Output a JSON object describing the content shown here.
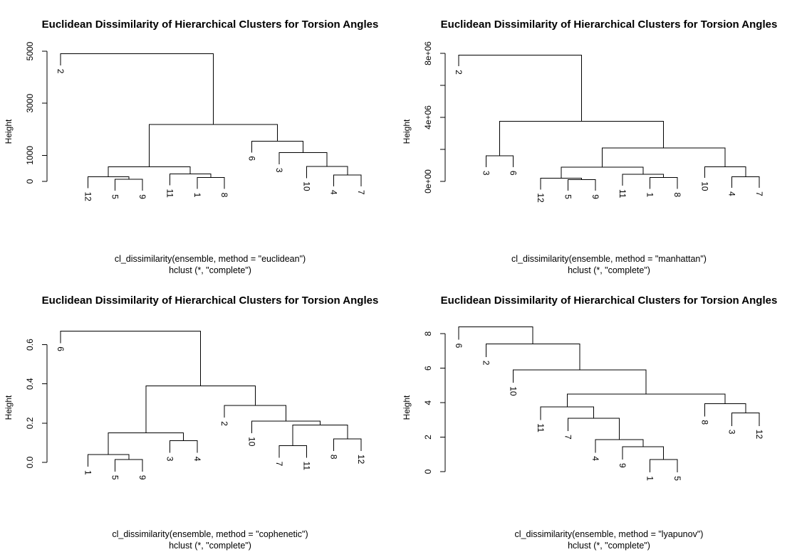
{
  "chart_data": [
    {
      "type": "dendrogram",
      "title": "Euclidean Dissimilarity of Hierarchical Clusters for Torsion Angles",
      "ylabel": "Height",
      "xlabel": "cl_dissimilarity(ensemble, method = \"euclidean\")",
      "sub": "hclust (*, \"complete\")",
      "yticks": [
        0,
        1000,
        3000,
        5000
      ],
      "ytick_labels": [
        "0",
        "1000",
        "3000",
        "5000"
      ],
      "ylim": [
        0,
        5000
      ],
      "leaf_order": [
        "2",
        "12",
        "5",
        "9",
        "11",
        "1",
        "8",
        "6",
        "3",
        "10",
        "4",
        "7"
      ],
      "merges": [
        {
          "a": "5",
          "b": "9",
          "h": 80
        },
        {
          "a": "1",
          "b": "8",
          "h": 150
        },
        {
          "a": "12",
          "b": "m1",
          "h": 180
        },
        {
          "a": "11",
          "b": "m2",
          "h": 290
        },
        {
          "a": "4",
          "b": "7",
          "h": 250
        },
        {
          "a": "10",
          "b": "m5",
          "h": 570
        },
        {
          "a": "3",
          "b": "m6",
          "h": 1100
        },
        {
          "a": "6",
          "b": "m7",
          "h": 1550
        },
        {
          "a": "m3",
          "b": "m4",
          "h": 560
        },
        {
          "a": "m9",
          "b": "m8",
          "h": 2180
        },
        {
          "a": "2",
          "b": "m10",
          "h": 4900
        }
      ]
    },
    {
      "type": "dendrogram",
      "title": "Euclidean Dissimilarity of Hierarchical Clusters for Torsion Angles",
      "ylabel": "Height",
      "xlabel": "cl_dissimilarity(ensemble, method = \"manhattan\")",
      "sub": "hclust (*, \"complete\")",
      "yticks": [
        0,
        4000000,
        8000000
      ],
      "ytick_labels": [
        "0e+00",
        "4e+06",
        "8e+06"
      ],
      "ylim": [
        0,
        8000000
      ],
      "minor_yticks": [
        2000000,
        6000000
      ],
      "leaf_order": [
        "2",
        "3",
        "6",
        "12",
        "5",
        "9",
        "11",
        "1",
        "8",
        "10",
        "4",
        "7"
      ],
      "merges": [
        {
          "a": "5",
          "b": "9",
          "h": 120000
        },
        {
          "a": "1",
          "b": "8",
          "h": 240000
        },
        {
          "a": "12",
          "b": "m1",
          "h": 200000
        },
        {
          "a": "11",
          "b": "m2",
          "h": 440000
        },
        {
          "a": "m3",
          "b": "m4",
          "h": 880000
        },
        {
          "a": "4",
          "b": "7",
          "h": 300000
        },
        {
          "a": "10",
          "b": "m6",
          "h": 920000
        },
        {
          "a": "m5",
          "b": "m7",
          "h": 2100000
        },
        {
          "a": "3",
          "b": "6",
          "h": 1600000
        },
        {
          "a": "m9",
          "b": "m8",
          "h": 3750000
        },
        {
          "a": "2",
          "b": "m10",
          "h": 7900000
        }
      ]
    },
    {
      "type": "dendrogram",
      "title": "Euclidean Dissimilarity of Hierarchical Clusters for Torsion Angles",
      "ylabel": "Height",
      "xlabel": "cl_dissimilarity(ensemble, method = \"cophenetic\")",
      "sub": "hclust (*, \"complete\")",
      "yticks": [
        0,
        0.2,
        0.4,
        0.6
      ],
      "ytick_labels": [
        "0.0",
        "0.2",
        "0.4",
        "0.6"
      ],
      "ylim": [
        0,
        0.7
      ],
      "leaf_order": [
        "6",
        "1",
        "5",
        "9",
        "3",
        "4",
        "2",
        "10",
        "7",
        "11",
        "8",
        "12"
      ],
      "merges": [
        {
          "a": "5",
          "b": "9",
          "h": 0.015
        },
        {
          "a": "1",
          "b": "m1",
          "h": 0.04
        },
        {
          "a": "3",
          "b": "4",
          "h": 0.11
        },
        {
          "a": "m2",
          "b": "m3",
          "h": 0.15
        },
        {
          "a": "7",
          "b": "11",
          "h": 0.085
        },
        {
          "a": "8",
          "b": "12",
          "h": 0.12
        },
        {
          "a": "m5",
          "b": "m6",
          "h": 0.19
        },
        {
          "a": "10",
          "b": "m7",
          "h": 0.21
        },
        {
          "a": "2",
          "b": "m8",
          "h": 0.29
        },
        {
          "a": "m4",
          "b": "m9",
          "h": 0.39
        },
        {
          "a": "6",
          "b": "m10",
          "h": 0.67
        }
      ]
    },
    {
      "type": "dendrogram",
      "title": "Euclidean Dissimilarity of Hierarchical Clusters for Torsion Angles",
      "ylabel": "Height",
      "xlabel": "cl_dissimilarity(ensemble, method = \"lyapunov\")",
      "sub": "hclust (*, \"complete\")",
      "yticks": [
        0,
        2,
        4,
        6,
        8
      ],
      "ytick_labels": [
        "0",
        "2",
        "4",
        "6",
        "8"
      ],
      "ylim": [
        0,
        8.5
      ],
      "leaf_order": [
        "6",
        "2",
        "10",
        "11",
        "7",
        "4",
        "9",
        "1",
        "5",
        "8",
        "3",
        "12"
      ],
      "merges": [
        {
          "a": "1",
          "b": "5",
          "h": 0.7
        },
        {
          "a": "9",
          "b": "m1",
          "h": 1.45
        },
        {
          "a": "4",
          "b": "m2",
          "h": 1.85
        },
        {
          "a": "7",
          "b": "m3",
          "h": 3.1
        },
        {
          "a": "11",
          "b": "m4",
          "h": 3.75
        },
        {
          "a": "3",
          "b": "12",
          "h": 3.4
        },
        {
          "a": "8",
          "b": "m6",
          "h": 3.95
        },
        {
          "a": "m5",
          "b": "m7",
          "h": 4.5
        },
        {
          "a": "10",
          "b": "m8",
          "h": 5.9
        },
        {
          "a": "2",
          "b": "m9",
          "h": 7.4
        },
        {
          "a": "6",
          "b": "m10",
          "h": 8.4
        }
      ]
    }
  ]
}
